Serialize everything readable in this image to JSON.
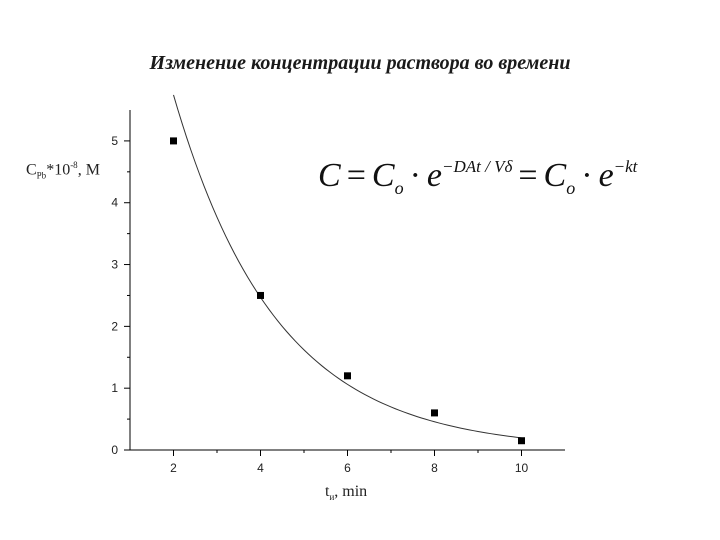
{
  "chart_data": {
    "type": "scatter",
    "title": "Изменение концентрации раствора во времени",
    "ylabel": {
      "main": "C",
      "sub": "Pb",
      "mid": "*10",
      "sup": "-8",
      "tail": ", M"
    },
    "xlabel": {
      "main": "t",
      "sub": "и",
      "tail": ", min"
    },
    "formula": {
      "lhs": "C",
      "eq1": "=",
      "c1": "C",
      "c1_sub": "o",
      "dot1": "·",
      "e1": "e",
      "exp1": "−DAt / Vδ",
      "eq2": "=",
      "c2": "C",
      "c2_sub": "o",
      "dot2": "·",
      "e2": "e",
      "exp2": "−kt"
    },
    "xlim": [
      1.0,
      11.0
    ],
    "ylim": [
      0,
      5.5
    ],
    "xticks": [
      2,
      4,
      6,
      8,
      10
    ],
    "yticks": [
      0,
      1,
      2,
      3,
      4,
      5
    ],
    "grid": false,
    "series": [
      {
        "x": [
          2,
          4,
          6,
          8,
          10
        ],
        "y": [
          5.0,
          2.5,
          1.2,
          0.6,
          0.15
        ],
        "marker": "square",
        "fit": "exponential",
        "color": "#000000"
      }
    ]
  }
}
